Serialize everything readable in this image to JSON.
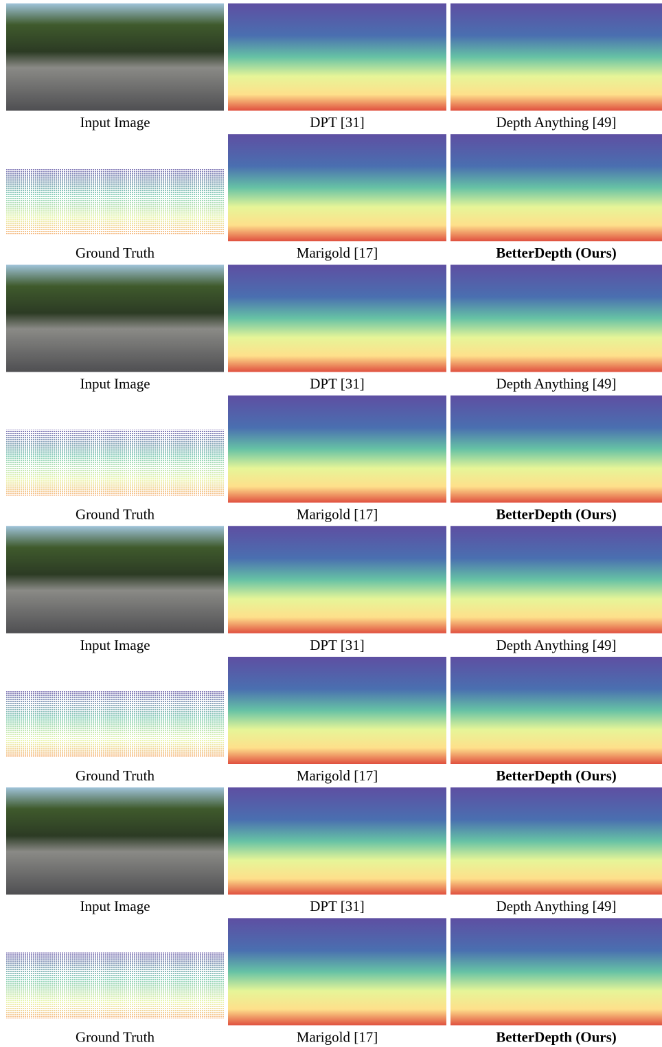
{
  "rows": [
    {
      "captions": [
        "Input Image",
        "DPT [31]",
        "Depth Anything [49]"
      ]
    },
    {
      "captions": [
        "Ground Truth",
        "Marigold [17]",
        "BetterDepth (Ours)"
      ]
    },
    {
      "captions": [
        "Input Image",
        "DPT [31]",
        "Depth Anything [49]"
      ]
    },
    {
      "captions": [
        "Ground Truth",
        "Marigold [17]",
        "BetterDepth (Ours)"
      ]
    },
    {
      "captions": [
        "Input Image",
        "DPT [31]",
        "Depth Anything [49]"
      ]
    },
    {
      "captions": [
        "Ground Truth",
        "Marigold [17]",
        "BetterDepth (Ours)"
      ]
    },
    {
      "captions": [
        "Input Image",
        "DPT [31]",
        "Depth Anything [49]"
      ]
    },
    {
      "captions": [
        "Ground Truth",
        "Marigold [17]",
        "BetterDepth (Ours)"
      ]
    }
  ]
}
